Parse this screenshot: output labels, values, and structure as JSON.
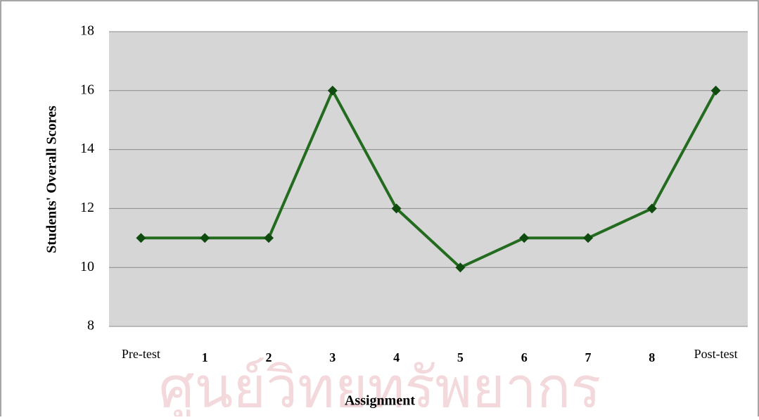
{
  "chart_data": {
    "type": "line",
    "x_label": "Assignment",
    "y_label": "Students' Overall Scores",
    "watermark": "ศูนย์วิทยทรัพยากร",
    "categories": [
      "Pre-test",
      "1",
      "2",
      "3",
      "4",
      "5",
      "6",
      "7",
      "8",
      "Post-test"
    ],
    "series": [
      {
        "name": "Students' Overall Scores",
        "color": "#236b1f",
        "marker_color": "#0f4a0f",
        "values": [
          11,
          11,
          11,
          16,
          12,
          10,
          11,
          11,
          12,
          16
        ]
      }
    ],
    "ylim": [
      8,
      18
    ],
    "yticks": [
      8,
      10,
      12,
      14,
      16,
      18
    ],
    "grid": true
  }
}
